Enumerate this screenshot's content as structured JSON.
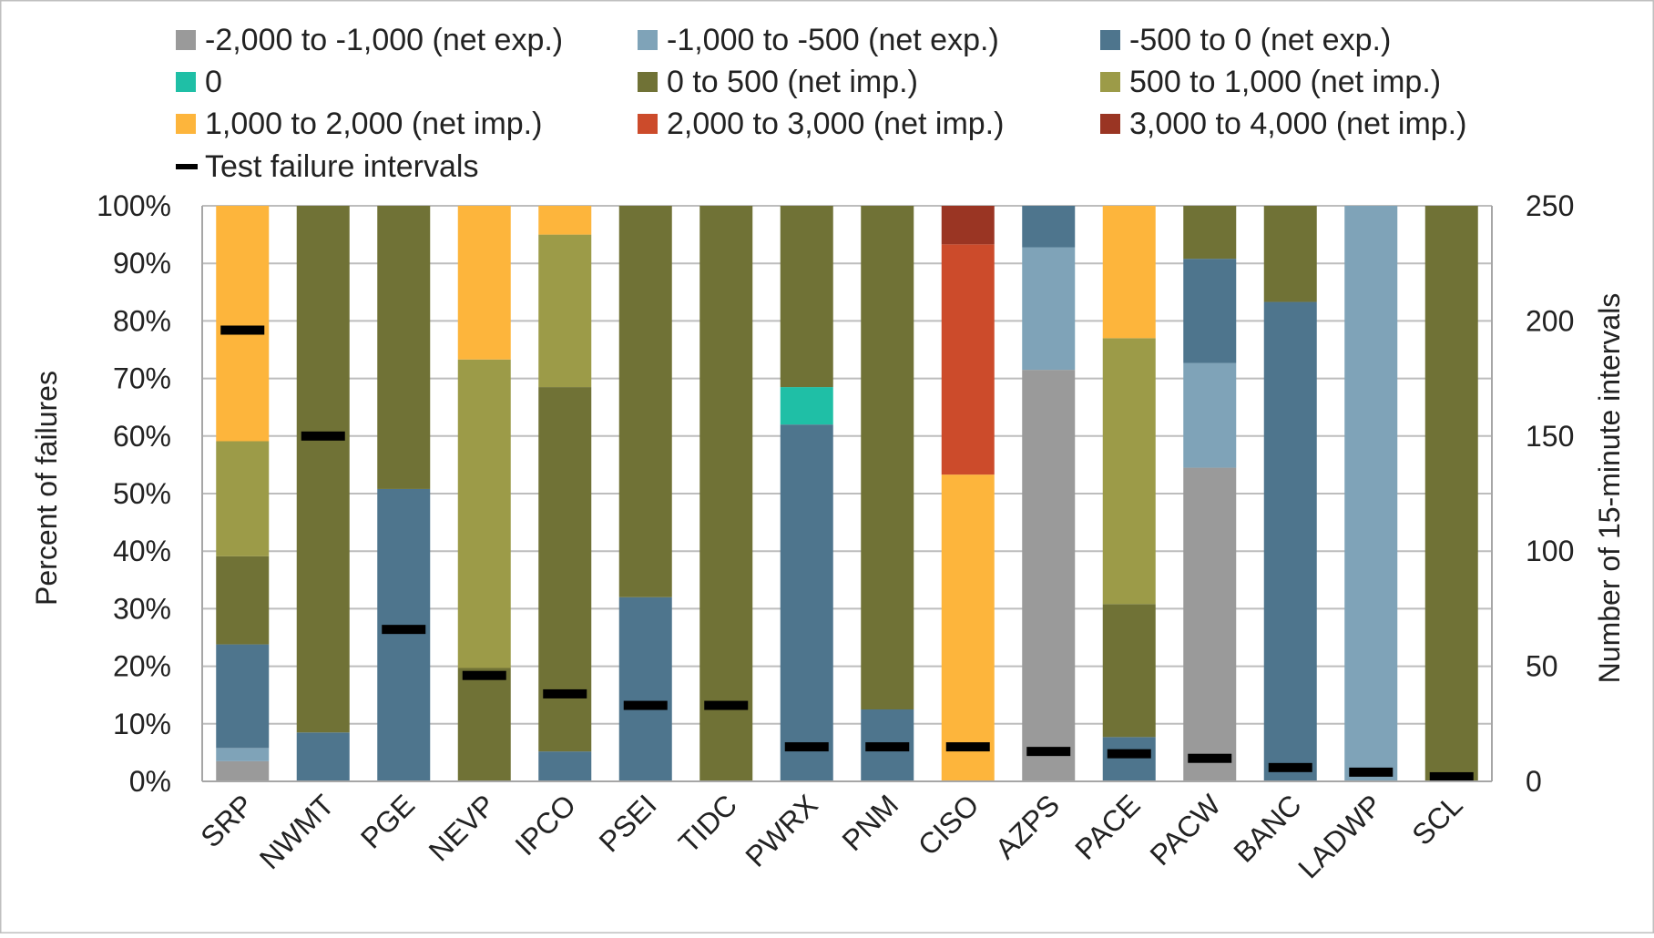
{
  "chart_data": {
    "type": "bar",
    "stacked": true,
    "title": "",
    "ylabel": "Percent of failures",
    "y2label": "Number of 15-minute intervals",
    "ylim": [
      0,
      100
    ],
    "y2lim": [
      0,
      250
    ],
    "yticks": [
      "0%",
      "10%",
      "20%",
      "30%",
      "40%",
      "50%",
      "60%",
      "70%",
      "80%",
      "90%",
      "100%"
    ],
    "y2ticks": [
      "0",
      "50",
      "100",
      "150",
      "200",
      "250"
    ],
    "grid": true,
    "legend_position": "top",
    "categories": [
      "SRP",
      "NWMT",
      "PGE",
      "NEVP",
      "IPCO",
      "PSEI",
      "TIDC",
      "PWRX",
      "PNM",
      "CISO",
      "AZPS",
      "PACE",
      "PACW",
      "BANC",
      "LADWP",
      "SCL"
    ],
    "series": [
      {
        "name": "-2,000 to -1,000 (net exp.)",
        "color": "#9a9a9a",
        "values": [
          3.5,
          0,
          0,
          0,
          0,
          0,
          0,
          0,
          0,
          0,
          71.5,
          0,
          54.5,
          0,
          0,
          0
        ]
      },
      {
        "name": "-1,000 to -500 (net exp.)",
        "color": "#7fa3b8",
        "values": [
          2.3,
          0,
          0,
          0,
          0,
          0,
          0,
          0,
          0,
          0,
          21.3,
          0,
          18.2,
          0,
          100,
          0
        ]
      },
      {
        "name": "-500 to 0 (net exp.)",
        "color": "#4e758d",
        "values": [
          18.0,
          8.5,
          50.8,
          0,
          5.2,
          32.0,
          0,
          62.0,
          12.5,
          0,
          7.2,
          7.7,
          18.1,
          83.3,
          0,
          0
        ]
      },
      {
        "name": "0",
        "color": "#1fbfa6",
        "values": [
          0,
          0,
          0,
          0,
          0,
          0,
          0,
          6.5,
          0,
          0,
          0,
          0,
          0,
          0,
          0,
          0
        ]
      },
      {
        "name": "0 to 500 (net imp.)",
        "color": "#707236",
        "values": [
          15.3,
          91.5,
          49.2,
          19.7,
          63.3,
          68.0,
          100,
          31.5,
          87.5,
          0,
          0,
          23.1,
          9.2,
          16.7,
          0,
          100
        ]
      },
      {
        "name": "500 to 1,000 (net imp.)",
        "color": "#9c9b48",
        "values": [
          20.0,
          0,
          0,
          53.6,
          26.5,
          0,
          0,
          0,
          0,
          0,
          0,
          46.2,
          0,
          0,
          0,
          0
        ]
      },
      {
        "name": "1,000 to 2,000 (net imp.)",
        "color": "#fdb53c",
        "values": [
          40.9,
          0,
          0,
          26.7,
          5.0,
          0,
          0,
          0,
          0,
          53.3,
          0,
          23.0,
          0,
          0,
          0,
          0
        ]
      },
      {
        "name": "2,000 to 3,000 (net imp.)",
        "color": "#cc4b2b",
        "values": [
          0,
          0,
          0,
          0,
          0,
          0,
          0,
          0,
          0,
          40.0,
          0,
          0,
          0,
          0,
          0,
          0
        ]
      },
      {
        "name": "3,000 to 4,000 (net imp.)",
        "color": "#9a3523",
        "values": [
          0,
          0,
          0,
          0,
          0,
          0,
          0,
          0,
          0,
          6.7,
          0,
          0,
          0,
          0,
          0,
          0
        ]
      }
    ],
    "marker_series": {
      "name": "Test failure intervals",
      "color": "#000000",
      "axis": "right",
      "values": [
        196,
        150,
        66,
        46,
        38,
        33,
        33,
        15,
        15,
        15,
        13,
        12,
        10,
        6,
        4,
        2
      ]
    }
  }
}
